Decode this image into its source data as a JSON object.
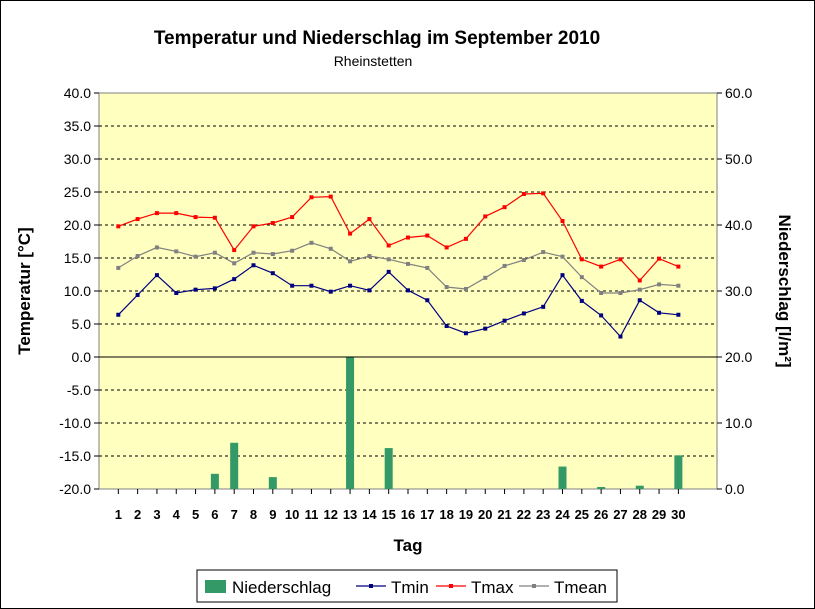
{
  "chart_data": {
    "type": "line",
    "title": "Temperatur und Niederschlag im September 2010",
    "subtitle": "Rheinstetten",
    "xlabel": "Tag",
    "ylabel": "Temperatur [°C]",
    "y2label": "Niederschlag [l/m²]",
    "ylim": [
      -20,
      40
    ],
    "y2lim": [
      0,
      60
    ],
    "yticks": [
      "40.0",
      "35.0",
      "30.0",
      "25.0",
      "20.0",
      "15.0",
      "10.0",
      "5.0",
      "0.0",
      "-5.0",
      "-10.0",
      "-15.0",
      "-20.0"
    ],
    "y2ticks": [
      "60.0",
      "50.0",
      "40.0",
      "30.0",
      "20.0",
      "10.0",
      "0.0"
    ],
    "categories": [
      "1",
      "2",
      "3",
      "4",
      "5",
      "6",
      "7",
      "8",
      "9",
      "10",
      "11",
      "12",
      "13",
      "14",
      "15",
      "16",
      "17",
      "18",
      "19",
      "20",
      "21",
      "22",
      "23",
      "24",
      "25",
      "26",
      "27",
      "28",
      "29",
      "30"
    ],
    "grid": true,
    "legend_position": "bottom",
    "series": [
      {
        "name": "Niederschlag",
        "type": "bar",
        "axis": "right",
        "color": "#339966",
        "values": [
          0,
          0,
          0,
          0,
          0,
          2.3,
          7,
          0,
          1.8,
          0,
          0,
          0,
          20,
          0,
          6.2,
          0,
          0,
          0,
          0,
          0,
          0,
          0,
          0,
          3.4,
          0,
          0.3,
          0,
          0.5,
          0,
          5.1
        ]
      },
      {
        "name": "Tmin",
        "type": "line",
        "axis": "left",
        "color": "#000080",
        "values": [
          6.4,
          9.4,
          12.4,
          9.7,
          10.2,
          10.4,
          11.8,
          13.9,
          12.7,
          10.8,
          10.8,
          9.9,
          10.8,
          10.1,
          12.9,
          10.1,
          8.6,
          4.7,
          3.6,
          4.3,
          5.5,
          6.6,
          7.6,
          12.4,
          8.5,
          6.3,
          3.1,
          8.6,
          6.7,
          6.4
        ]
      },
      {
        "name": "Tmax",
        "type": "line",
        "axis": "left",
        "color": "#ff0000",
        "values": [
          19.8,
          20.9,
          21.8,
          21.8,
          21.2,
          21.1,
          16.2,
          19.8,
          20.3,
          21.2,
          24.2,
          24.3,
          18.7,
          20.9,
          16.9,
          18.1,
          18.4,
          16.6,
          17.9,
          21.3,
          22.7,
          24.7,
          24.8,
          20.6,
          14.8,
          13.7,
          14.8,
          11.6,
          14.9,
          13.7
        ]
      },
      {
        "name": "Tmean",
        "type": "line",
        "axis": "left",
        "color": "#808080",
        "values": [
          13.5,
          15.3,
          16.6,
          16.0,
          15.2,
          15.8,
          14.2,
          15.8,
          15.6,
          16.1,
          17.3,
          16.4,
          14.5,
          15.3,
          14.8,
          14.1,
          13.5,
          10.6,
          10.3,
          12.0,
          13.8,
          14.7,
          15.9,
          15.2,
          12.1,
          9.7,
          9.7,
          10.2,
          11.0,
          10.8
        ]
      }
    ]
  }
}
